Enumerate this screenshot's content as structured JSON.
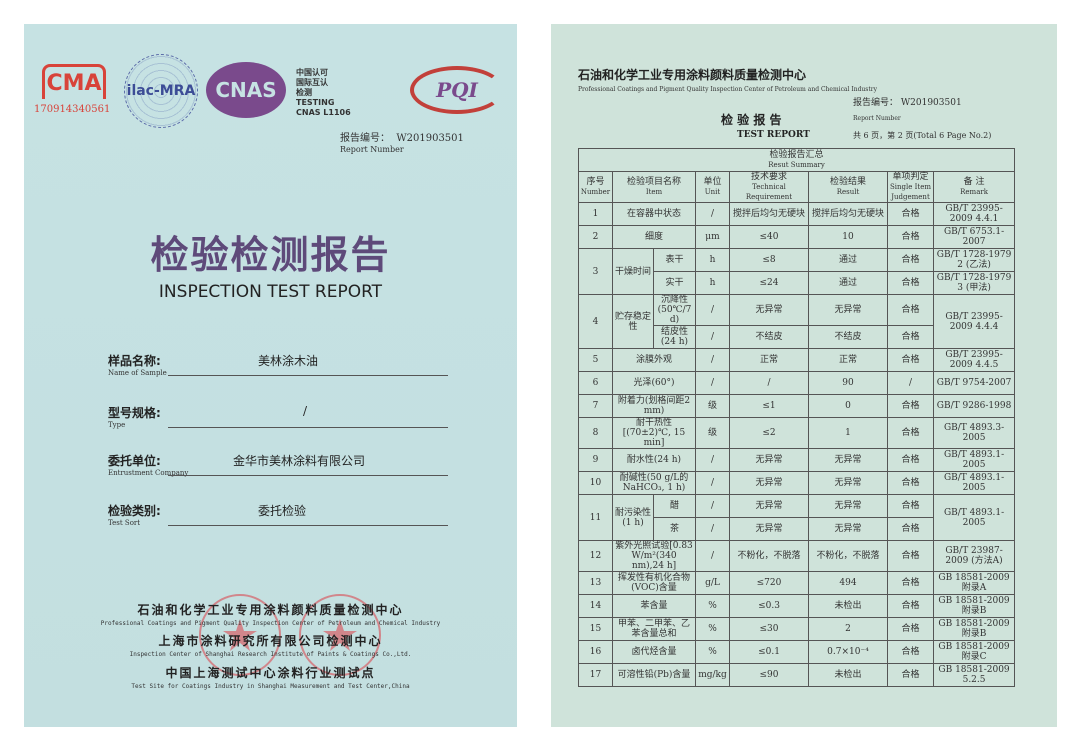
{
  "left": {
    "cma_text": "CMA",
    "cma_number": "170914340561",
    "ilac_text": "ilac-MRA",
    "cnas_text": "CNAS",
    "cnas_caption": [
      "中国认可",
      "国际互认",
      "检测",
      "TESTING",
      "CNAS L1106"
    ],
    "pqi_text": "PQI",
    "report_number_label": "报告编号：",
    "report_number": "W201903501",
    "report_number_en": "Report Number",
    "title_cn": "检验检测报告",
    "title_en": "INSPECTION TEST REPORT",
    "fields": [
      {
        "label": "样品名称:",
        "en": "Name of Sample",
        "value": "美林涂木油"
      },
      {
        "label": "型号规格:",
        "en": "Type",
        "value": "/"
      },
      {
        "label": "委托单位:",
        "en": "Entrustment Company",
        "value": "金华市美林涂料有限公司"
      },
      {
        "label": "检验类别:",
        "en": "Test Sort",
        "value": "委托检验"
      }
    ],
    "orgs": [
      {
        "cn": "石油和化学工业专用涂料颜料质量检测中心",
        "en": "Professional Coatings and Pigment Quality Inspection Center of Petroleum and Chemical Industry"
      },
      {
        "cn": "上海市涂料研究所有限公司检测中心",
        "en": "Inspection Center of Shanghai Research Institute of Paints & Coatings Co.,Ltd."
      },
      {
        "cn": "中国上海测试中心涂料行业测试点",
        "en": "Test Site for Coatings Industry in Shanghai Measurement and Test Center,China"
      }
    ],
    "stamp_text": "检验报告专用章"
  },
  "right": {
    "org_cn": "石油和化学工业专用涂料颜料质量检测中心",
    "org_en": "Professional Coatings and Pigment Quality Inspection Center of Petroleum and Chemical Industry",
    "report_number_label": "报告编号：",
    "report_number": "W201903501",
    "report_number_en": "Report Number",
    "title_cn": "检 验 报 告",
    "title_en": "TEST REPORT",
    "page_info": "共 6 页，第 2 页(Total 6 Page No.2)",
    "summary_cn": "检验报告汇总",
    "summary_en": "Resut Summary",
    "headers": [
      {
        "cn": "序号",
        "en": "Number"
      },
      {
        "cn": "检验项目名称",
        "en": "Item"
      },
      {
        "cn": "单位",
        "en": "Unit"
      },
      {
        "cn": "技术要求",
        "en": "Technical Requirement"
      },
      {
        "cn": "检验结果",
        "en": "Result"
      },
      {
        "cn": "单项判定",
        "en": "Single Item Judgement"
      },
      {
        "cn": "备 注",
        "en": "Remark"
      }
    ],
    "rows": [
      {
        "no": "1",
        "item": "在容器中状态",
        "unit": "/",
        "req": "搅拌后均匀无硬块",
        "result": "搅拌后均匀无硬块",
        "judge": "合格",
        "remark": "GB/T 23995-2009 4.4.1"
      },
      {
        "no": "2",
        "item": "细度",
        "unit": "μm",
        "req": "≤40",
        "result": "10",
        "judge": "合格",
        "remark": "GB/T 6753.1-2007"
      },
      {
        "no": "3",
        "item": "干燥时间",
        "subs": [
          {
            "sub": "表干",
            "unit": "h",
            "req": "≤8",
            "result": "通过",
            "judge": "合格",
            "remark": "GB/T 1728-1979 2 (乙法)"
          },
          {
            "sub": "实干",
            "unit": "h",
            "req": "≤24",
            "result": "通过",
            "judge": "合格",
            "remark": "GB/T 1728-1979 3 (甲法)"
          }
        ]
      },
      {
        "no": "4",
        "item": "贮存稳定性",
        "remark": "GB/T 23995-2009 4.4.4",
        "subs": [
          {
            "sub": "沉降性(50℃/7 d)",
            "unit": "/",
            "req": "无异常",
            "result": "无异常",
            "judge": "合格"
          },
          {
            "sub": "结皮性(24 h)",
            "unit": "/",
            "req": "不结皮",
            "result": "不结皮",
            "judge": "合格"
          }
        ]
      },
      {
        "no": "5",
        "item": "涂膜外观",
        "unit": "/",
        "req": "正常",
        "result": "正常",
        "judge": "合格",
        "remark": "GB/T 23995-2009 4.4.5"
      },
      {
        "no": "6",
        "item": "光泽(60°)",
        "unit": "/",
        "req": "/",
        "result": "90",
        "judge": "/",
        "remark": "GB/T 9754-2007"
      },
      {
        "no": "7",
        "item": "附着力(划格间距2 mm)",
        "unit": "级",
        "req": "≤1",
        "result": "0",
        "judge": "合格",
        "remark": "GB/T 9286-1998"
      },
      {
        "no": "8",
        "item": "耐干热性[(70±2)℃, 15 min]",
        "unit": "级",
        "req": "≤2",
        "result": "1",
        "judge": "合格",
        "remark": "GB/T 4893.3-2005"
      },
      {
        "no": "9",
        "item": "耐水性(24 h)",
        "unit": "/",
        "req": "无异常",
        "result": "无异常",
        "judge": "合格",
        "remark": "GB/T 4893.1-2005"
      },
      {
        "no": "10",
        "item": "耐碱性(50 g/L的NaHCO₃, 1 h)",
        "unit": "/",
        "req": "无异常",
        "result": "无异常",
        "judge": "合格",
        "remark": "GB/T 4893.1-2005"
      },
      {
        "no": "11",
        "item": "耐污染性(1 h)",
        "remark": "GB/T 4893.1-2005",
        "subs": [
          {
            "sub": "醋",
            "unit": "/",
            "req": "无异常",
            "result": "无异常",
            "judge": "合格"
          },
          {
            "sub": "茶",
            "unit": "/",
            "req": "无异常",
            "result": "无异常",
            "judge": "合格"
          }
        ]
      },
      {
        "no": "12",
        "item": "紫外光照试验[0.83 W/m²(340 nm),24 h]",
        "unit": "/",
        "req": "不粉化，不脱落",
        "result": "不粉化，不脱落",
        "judge": "合格",
        "remark": "GB/T 23987-2009 (方法A)"
      },
      {
        "no": "13",
        "item": "挥发性有机化合物(VOC)含量",
        "unit": "g/L",
        "req": "≤720",
        "result": "494",
        "judge": "合格",
        "remark": "GB 18581-2009 附录A"
      },
      {
        "no": "14",
        "item": "苯含量",
        "unit": "%",
        "req": "≤0.3",
        "result": "未检出",
        "judge": "合格",
        "remark": "GB 18581-2009 附录B"
      },
      {
        "no": "15",
        "item": "甲苯、二甲苯、乙苯含量总和",
        "unit": "%",
        "req": "≤30",
        "result": "2",
        "judge": "合格",
        "remark": "GB 18581-2009 附录B"
      },
      {
        "no": "16",
        "item": "卤代烃含量",
        "unit": "%",
        "req": "≤0.1",
        "result": "0.7×10⁻⁴",
        "judge": "合格",
        "remark": "GB 18581-2009 附录C"
      },
      {
        "no": "17",
        "item": "可溶性铅(Pb)含量",
        "unit": "mg/kg",
        "req": "≤90",
        "result": "未检出",
        "judge": "合格",
        "remark": "GB 18581-2009 5.2.5"
      }
    ]
  }
}
